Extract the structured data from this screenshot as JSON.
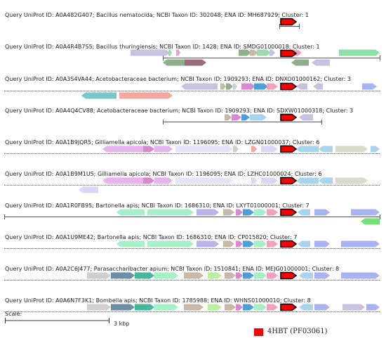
{
  "legend": {
    "label": "4HBT (PF03061)",
    "color": "#ff0000"
  },
  "scale": {
    "label": "Scale:",
    "value": "3 kbp"
  },
  "tracks": [
    {
      "label": "Query UniProt ID: A0A482G407; Bacillus nematocida; NCBI Taxon ID: 302048; ENA ID: MH687929; Cluster: 1"
    },
    {
      "label": "Query UniProt ID: A0A4R4B7S5; Bacillus thuringiensis; NCBI Taxon ID: 1428; ENA ID: SMDG01000018; Cluster: 1"
    },
    {
      "label": "Query UniProt ID: A0A3S4VA44; Acetobacteraceae bacterium; NCBI Taxon ID: 1909293; ENA ID: DNXO01000162; Cluster: 3"
    },
    {
      "label": "Query UniProt ID: A0A4Q4CV88; Acetobacteraceae bacterium; NCBI Taxon ID: 1909293; ENA ID: SDXW01000318; Cluster: 3"
    },
    {
      "label": "Query UniProt ID: A0A1B9JQR5; Gilliamella apicola; NCBI Taxon ID: 1196095; ENA ID: LZGN01000037; Cluster: 6"
    },
    {
      "label": "Query UniProt ID: A0A1B9M1U5; Gilliamella apicola; NCBI Taxon ID: 1196095; ENA ID: LZHC01000024; Cluster: 6"
    },
    {
      "label": "Query UniProt ID: A0A1R0FB95; Bartonella apis; NCBI Taxon ID: 1686310; ENA ID: LXYT01000001; Cluster: 7"
    },
    {
      "label": "Query UniProt ID: A0A1U9ME42; Bartonella apis; NCBI Taxon ID: 1686310; ENA ID: CP015820; Cluster: 7"
    },
    {
      "label": "Query UniProt ID: A0A2C6J477; Parasaccharibacter apium; NCBI Taxon ID: 1510841; ENA ID: MEJG01000001; Cluster: 8"
    },
    {
      "label": "Query UniProt ID: A0A6N7F3K1; Bombella apis; NCBI Taxon ID: 1785988; ENA ID: WHNS01000010; Cluster: 8"
    }
  ]
}
